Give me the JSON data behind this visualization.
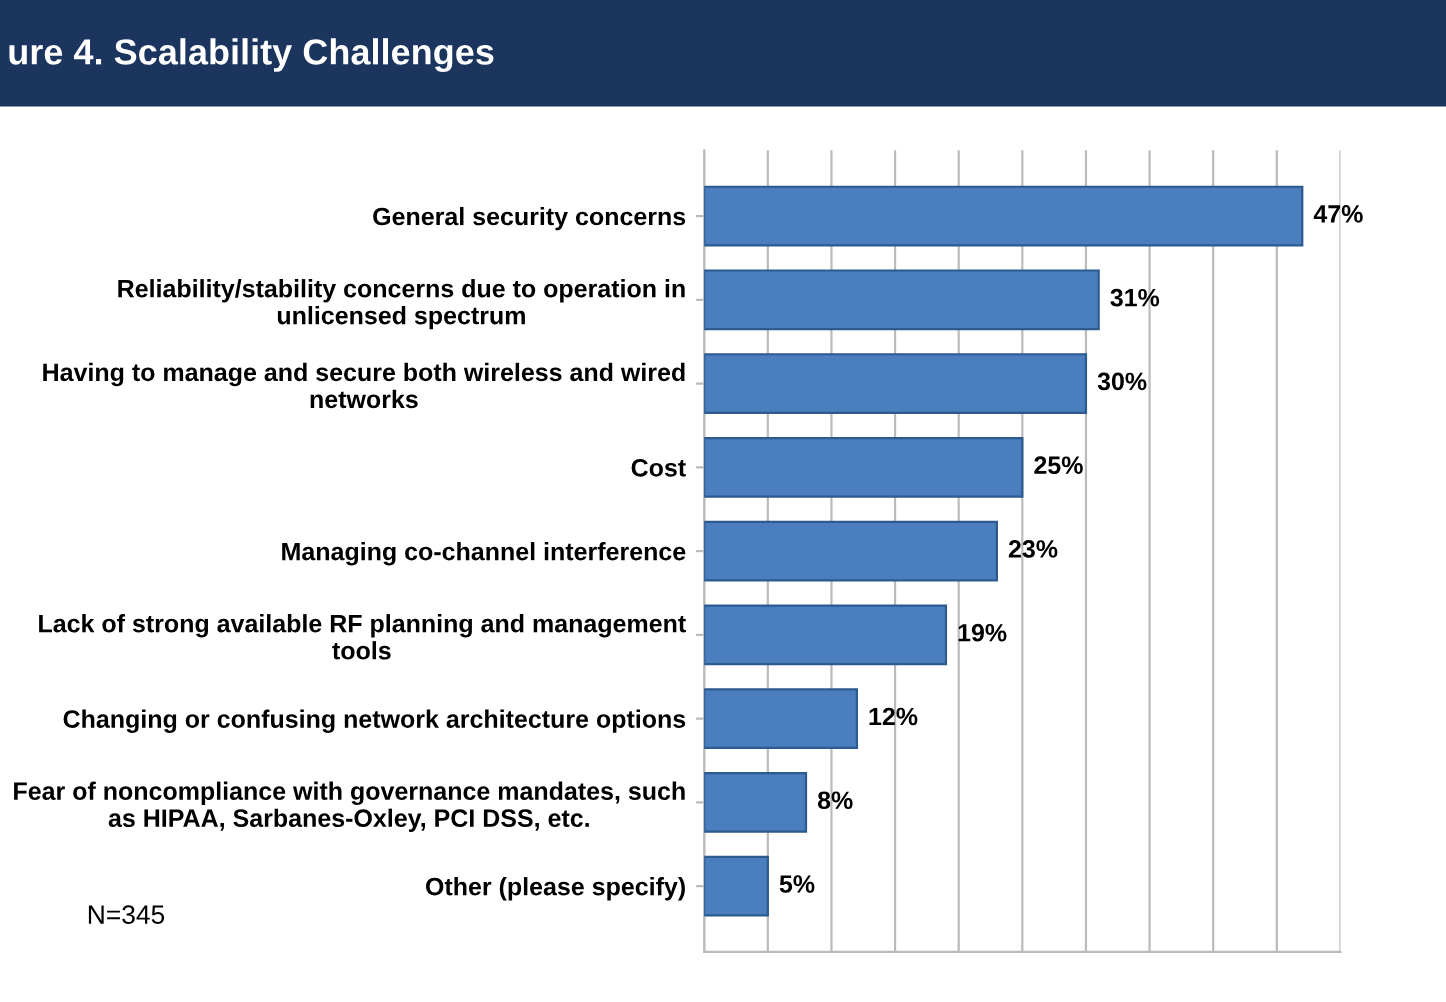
{
  "chart_data": {
    "type": "bar",
    "orientation": "horizontal",
    "title": "ure 4. Scalability Challenges",
    "categories": [
      "General security concerns",
      "Reliability/stability concerns due to operation in\nunlicensed spectrum",
      "Having to manage and secure both wireless and wired\nnetworks",
      "Cost",
      "Managing co-channel interference",
      "Lack of strong available RF planning and management\ntools",
      "Changing or confusing network architecture options",
      "Fear of noncompliance with governance mandates, such\nas HIPAA, Sarbanes-Oxley, PCI DSS, etc.",
      "Other (please specify)"
    ],
    "values": [
      47,
      31,
      30,
      25,
      23,
      19,
      12,
      8,
      5
    ],
    "value_labels": [
      "47%",
      "31%",
      "30%",
      "25%",
      "23%",
      "19%",
      "12%",
      "8%",
      "5%"
    ],
    "color": "#4a7ebf",
    "xlim": [
      0,
      50
    ],
    "xticks": [
      {
        "value": 0,
        "label": null
      },
      {
        "value": 5,
        "label": null
      },
      {
        "value": 10,
        "label": null
      },
      {
        "value": 15,
        "label": null
      },
      {
        "value": 20,
        "label": null
      },
      {
        "value": 25,
        "label": null
      },
      {
        "value": 30,
        "label": null
      },
      {
        "value": 35,
        "label": null
      },
      {
        "value": 40,
        "label": null
      },
      {
        "value": 45,
        "label": null
      },
      {
        "value": 50,
        "label": null
      }
    ],
    "grid": "x",
    "tick_labels": "y",
    "annotations": [
      "N=345"
    ]
  }
}
